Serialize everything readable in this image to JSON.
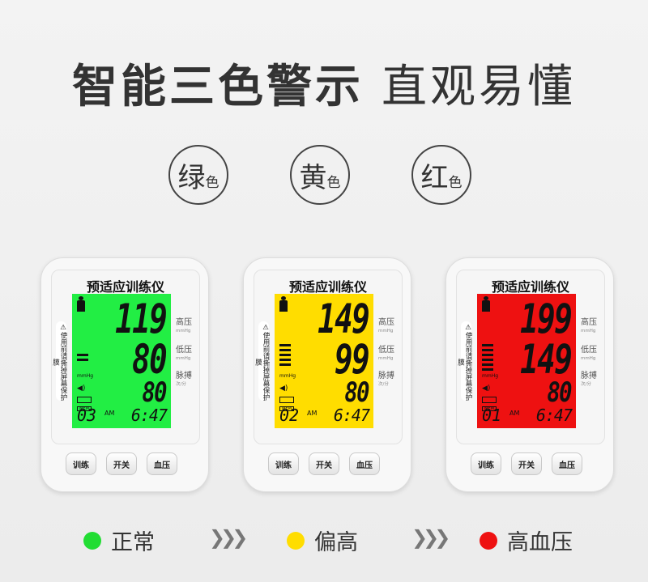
{
  "headline": {
    "bold": "智能三色警示",
    "normal": "直观易懂"
  },
  "badges": [
    {
      "big": "绿",
      "small": "色"
    },
    {
      "big": "黄",
      "small": "色"
    },
    {
      "big": "红",
      "small": "色"
    }
  ],
  "devices": [
    {
      "title": "预适应训练仪",
      "screen_color": "#22ee44",
      "systolic": "119",
      "diastolic": "80",
      "pulse": "80",
      "memory": "03",
      "am": "AM",
      "time": "6:47",
      "level_bars": 2
    },
    {
      "title": "预适应训练仪",
      "screen_color": "#ffdd00",
      "systolic": "149",
      "diastolic": "99",
      "pulse": "80",
      "memory": "02",
      "am": "AM",
      "time": "6:47",
      "level_bars": 5
    },
    {
      "title": "预适应训练仪",
      "screen_color": "#ee1111",
      "systolic": "199",
      "diastolic": "149",
      "pulse": "80",
      "memory": "01",
      "am": "AM",
      "time": "6:47",
      "level_bars": 6
    }
  ],
  "device_common": {
    "warning": "⚠使用前请撕掉屏幕保护膜",
    "unit": "mmHg",
    "mem_icon": "MEM",
    "labels": {
      "systolic": "高压",
      "systolic_unit": "mmHg",
      "diastolic": "低压",
      "diastolic_unit": "mmHg",
      "pulse": "脉搏",
      "pulse_unit": "次/分"
    },
    "buttons": [
      "训练",
      "开关",
      "血压"
    ]
  },
  "legend": [
    {
      "label": "正常",
      "color": "#22dd33"
    },
    {
      "label": "偏高",
      "color": "#ffdd00"
    },
    {
      "label": "高血压",
      "color": "#ee1111"
    }
  ],
  "arrow": "❯❯❯"
}
